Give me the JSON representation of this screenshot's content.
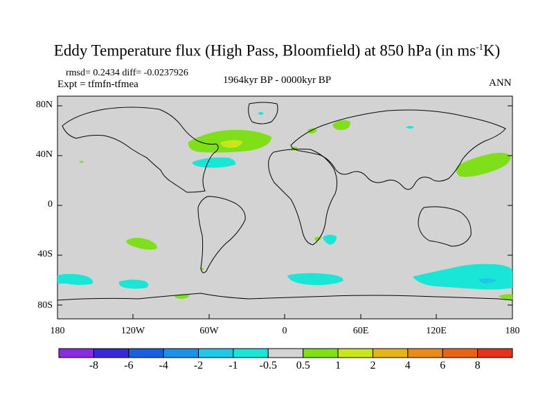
{
  "title": {
    "main": "Eddy Temperature flux (High Pass, Bloomfield) at 850 hPa (in ms",
    "sup": "-1",
    "tail": "K)"
  },
  "stats": "rmsd= 0.2434 diff= -0.0237926",
  "experiment": "Expt = tfmfn-tfmea",
  "period": "1964kyr BP - 0000kyr BP",
  "season": "ANN",
  "map": {
    "background_color": "#d3d3d3",
    "lat_labels": [
      "80N",
      "40N",
      "0",
      "40S",
      "80S"
    ],
    "lon_labels": [
      "180",
      "120W",
      "60W",
      "0",
      "60E",
      "120E",
      "180"
    ]
  },
  "colorbar": {
    "labels": [
      "-8",
      "-6",
      "-4",
      "-2",
      "-1",
      "-0.5",
      "0.5",
      "1",
      "2",
      "4",
      "6",
      "8"
    ],
    "colors": [
      "#8a2be2",
      "#3a2ad6",
      "#1a5fe0",
      "#1e90e8",
      "#1ec8e6",
      "#1ae6d8",
      "#d3d3d3",
      "#7fe01a",
      "#c8e61a",
      "#e6b41a",
      "#e68c1a",
      "#e6641a",
      "#e6321a"
    ]
  }
}
